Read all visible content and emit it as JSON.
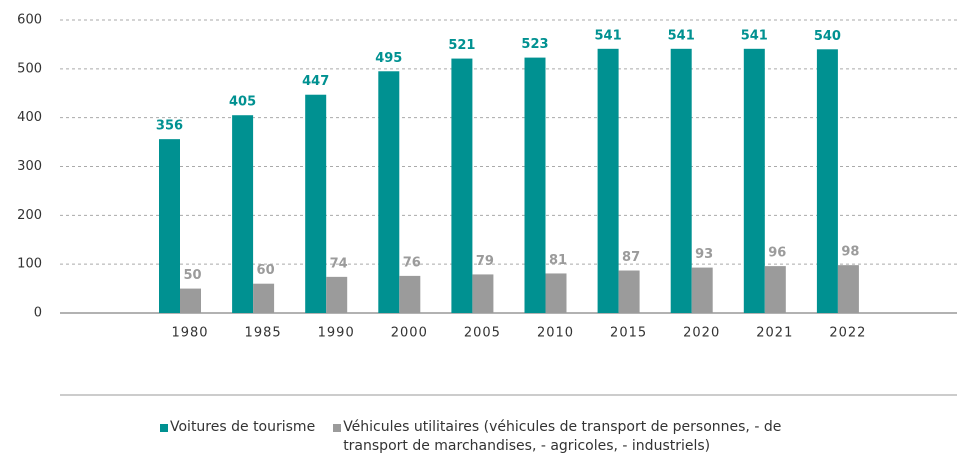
{
  "chart_data": {
    "type": "bar",
    "categories": [
      "1980",
      "1985",
      "1990",
      "2000",
      "2005",
      "2010",
      "2015",
      "2020",
      "2021",
      "2022"
    ],
    "series": [
      {
        "name": "Voitures de tourisme",
        "color": "#009191",
        "values": [
          356,
          405,
          447,
          495,
          521,
          523,
          541,
          541,
          541,
          540
        ]
      },
      {
        "name": "Véhicules utilitaires (véhicules de transport de personnes, - de transport de marchandises, - agricoles, - industriels)",
        "color": "#9b9b9b",
        "values": [
          50,
          60,
          74,
          76,
          79,
          81,
          87,
          93,
          96,
          98
        ]
      }
    ],
    "ylim": [
      0,
      600
    ],
    "yticks": [
      0,
      100,
      200,
      300,
      400,
      500,
      600
    ],
    "grid": true
  }
}
